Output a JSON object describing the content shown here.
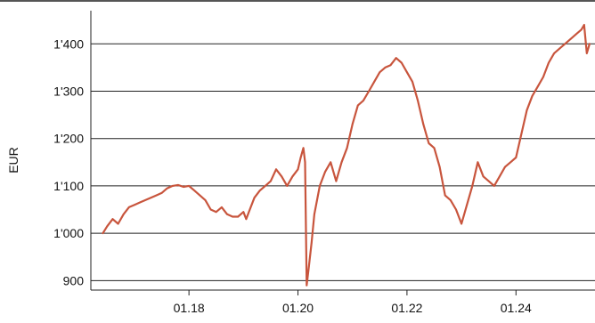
{
  "chart_data": {
    "type": "line",
    "title": "",
    "xlabel": "",
    "ylabel": "EUR",
    "ylim": [
      880,
      1470
    ],
    "xlim": [
      2016.2,
      2025.45
    ],
    "x_ticks": [
      2018,
      2020,
      2022,
      2024
    ],
    "x_tick_labels": [
      "01.18",
      "01.20",
      "01.22",
      "01.24"
    ],
    "y_ticks": [
      900,
      1000,
      1100,
      1200,
      1300,
      1400
    ],
    "y_tick_labels": [
      "900",
      "1'000",
      "1'100",
      "1'200",
      "1'300",
      "1'400"
    ],
    "grid": "horizontal",
    "legend": "none",
    "line_color": "#c8553d",
    "series": [
      {
        "x": [
          2016.42,
          2016.5,
          2016.6,
          2016.7,
          2016.8,
          2016.9,
          2017.0,
          2017.1,
          2017.2,
          2017.3,
          2017.4,
          2017.5,
          2017.6,
          2017.7,
          2017.8,
          2017.9,
          2018.0,
          2018.1,
          2018.2,
          2018.3,
          2018.4,
          2018.5,
          2018.6,
          2018.7,
          2018.8,
          2018.9,
          2019.0,
          2019.05,
          2019.1,
          2019.2,
          2019.3,
          2019.4,
          2019.5,
          2019.6,
          2019.7,
          2019.8,
          2019.9,
          2020.0,
          2020.05,
          2020.1,
          2020.13,
          2020.16,
          2020.2,
          2020.25,
          2020.3,
          2020.4,
          2020.5,
          2020.6,
          2020.7,
          2020.8,
          2020.9,
          2021.0,
          2021.1,
          2021.2,
          2021.3,
          2021.4,
          2021.5,
          2021.6,
          2021.7,
          2021.8,
          2021.9,
          2022.0,
          2022.1,
          2022.2,
          2022.3,
          2022.4,
          2022.5,
          2022.6,
          2022.7,
          2022.8,
          2022.9,
          2023.0,
          2023.1,
          2023.2,
          2023.3,
          2023.4,
          2023.5,
          2023.6,
          2023.7,
          2023.8,
          2023.9,
          2024.0,
          2024.1,
          2024.2,
          2024.3,
          2024.4,
          2024.5,
          2024.6,
          2024.7,
          2024.8,
          2024.9,
          2025.0,
          2025.1,
          2025.2,
          2025.25,
          2025.3,
          2025.35
        ],
        "y": [
          1000,
          1015,
          1030,
          1020,
          1040,
          1055,
          1060,
          1065,
          1070,
          1075,
          1080,
          1085,
          1095,
          1100,
          1102,
          1098,
          1100,
          1090,
          1080,
          1070,
          1050,
          1045,
          1055,
          1040,
          1035,
          1035,
          1045,
          1030,
          1045,
          1075,
          1090,
          1100,
          1110,
          1135,
          1120,
          1100,
          1120,
          1135,
          1160,
          1180,
          1150,
          890,
          930,
          980,
          1040,
          1100,
          1130,
          1150,
          1110,
          1150,
          1180,
          1230,
          1270,
          1280,
          1300,
          1320,
          1340,
          1350,
          1355,
          1370,
          1360,
          1340,
          1320,
          1280,
          1230,
          1190,
          1180,
          1140,
          1080,
          1070,
          1050,
          1020,
          1060,
          1100,
          1150,
          1120,
          1110,
          1100,
          1120,
          1140,
          1150,
          1160,
          1210,
          1260,
          1290,
          1310,
          1330,
          1360,
          1380,
          1390,
          1400,
          1410,
          1420,
          1430,
          1440,
          1380,
          1400
        ]
      }
    ]
  }
}
